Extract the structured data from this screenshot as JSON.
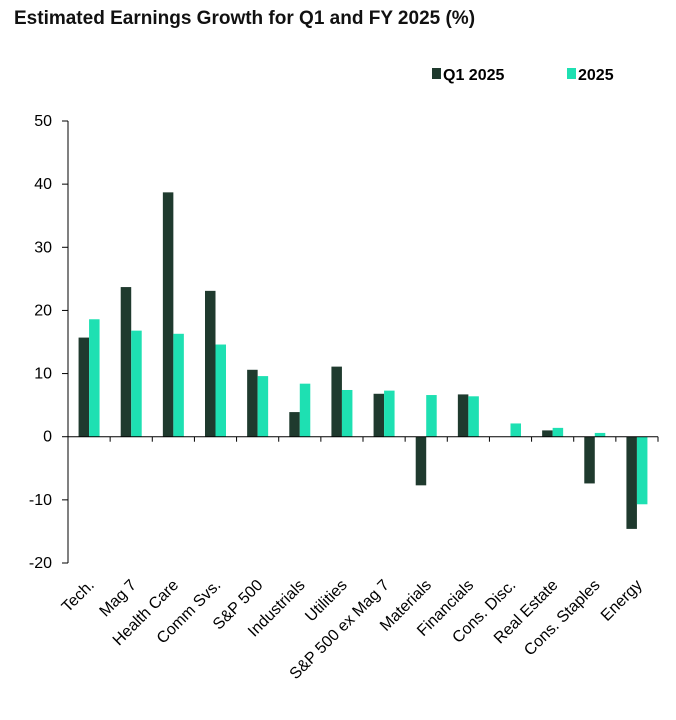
{
  "chart_data": {
    "type": "bar",
    "title": "Estimated Earnings Growth for Q1 and FY 2025 (%)",
    "xlabel": "",
    "ylabel": "",
    "ylim": [
      -20,
      50
    ],
    "yticks": [
      50,
      40,
      30,
      20,
      10,
      0,
      -10,
      -20
    ],
    "legend_position": "top-right",
    "categories": [
      "Tech.",
      "Mag 7",
      "Health Care",
      "Comm Svs.",
      "S&P 500",
      "Industrials",
      "Utilities",
      "S&P 500 ex Mag 7",
      "Materials",
      "Financials",
      "Cons. Disc.",
      "Real Estate",
      "Cons. Staples",
      "Energy"
    ],
    "series": [
      {
        "name": "Q1 2025",
        "color": "#1f3a2e",
        "values": [
          15.7,
          23.7,
          38.7,
          23.1,
          10.6,
          3.9,
          11.1,
          6.8,
          -7.7,
          6.7,
          0.0,
          1.0,
          -7.4,
          -14.6
        ]
      },
      {
        "name": "2025",
        "color": "#1ee0b2",
        "values": [
          18.6,
          16.8,
          16.3,
          14.6,
          9.6,
          8.4,
          7.4,
          7.3,
          6.6,
          6.4,
          2.1,
          1.4,
          0.6,
          -10.7
        ]
      }
    ]
  }
}
